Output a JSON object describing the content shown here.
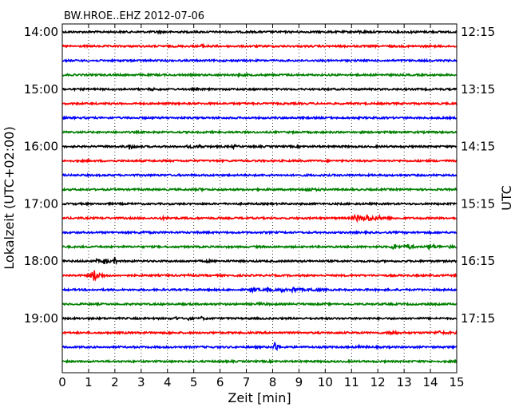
{
  "chart_data": {
    "type": "line",
    "title": "BW.HROE..EHZ 2012-07-06",
    "xlabel": "Zeit  [min]",
    "ylabel_left": "Lokalzeit (UTC+02:00)",
    "ylabel_right": "UTC",
    "xlim": [
      0,
      15
    ],
    "x_ticks": [
      "0",
      "1",
      "2",
      "3",
      "4",
      "5",
      "6",
      "7",
      "8",
      "9",
      "10",
      "11",
      "12",
      "13",
      "14",
      "15"
    ],
    "grid": "vertical dotted",
    "row_interval_minutes": 15,
    "colors": [
      "#000000",
      "#ff0000",
      "#0000ff",
      "#008000"
    ],
    "left_tick_labels": [
      "14:00",
      "15:00",
      "16:00",
      "17:00",
      "18:00",
      "19:00"
    ],
    "right_tick_labels": [
      "12:15",
      "13:15",
      "14:15",
      "15:15",
      "16:15",
      "17:15"
    ],
    "traces": [
      {
        "color": "#000000",
        "events": [
          {
            "t": 3.6,
            "a": 0.8,
            "w": 0.15
          },
          {
            "t": 11.3,
            "a": 0.8,
            "w": 0.2
          },
          {
            "t": 13.2,
            "a": 0.6,
            "w": 0.15
          }
        ]
      },
      {
        "color": "#ff0000",
        "events": [
          {
            "t": 5.3,
            "a": 1.6,
            "w": 0.2
          }
        ]
      },
      {
        "color": "#0000ff",
        "events": []
      },
      {
        "color": "#008000",
        "events": [
          {
            "t": 6.7,
            "a": 0.6,
            "w": 0.15
          }
        ]
      },
      {
        "color": "#000000",
        "events": [
          {
            "t": 3.4,
            "a": 0.6,
            "w": 0.15
          }
        ]
      },
      {
        "color": "#ff0000",
        "events": []
      },
      {
        "color": "#0000ff",
        "events": []
      },
      {
        "color": "#008000",
        "events": [
          {
            "t": 11.8,
            "a": 0.5,
            "w": 0.2
          }
        ]
      },
      {
        "color": "#000000",
        "events": [
          {
            "t": 2.55,
            "a": 3.0,
            "w": 0.15
          },
          {
            "t": 4.8,
            "a": 2.0,
            "w": 0.1
          },
          {
            "t": 5.2,
            "a": 2.0,
            "w": 0.1
          },
          {
            "t": 6.5,
            "a": 1.5,
            "w": 0.1
          }
        ]
      },
      {
        "color": "#ff0000",
        "events": []
      },
      {
        "color": "#0000ff",
        "events": []
      },
      {
        "color": "#008000",
        "events": [
          {
            "t": 9.3,
            "a": 2.0,
            "w": 0.25
          },
          {
            "t": 5.2,
            "a": 0.7,
            "w": 0.15
          }
        ]
      },
      {
        "color": "#000000",
        "events": []
      },
      {
        "color": "#ff0000",
        "events": [
          {
            "t": 11.2,
            "a": 3.5,
            "w": 0.25
          },
          {
            "t": 11.6,
            "a": 3.5,
            "w": 0.2
          },
          {
            "t": 12.1,
            "a": 1.5,
            "w": 0.2
          },
          {
            "t": 3.8,
            "a": 1.0,
            "w": 0.15
          }
        ]
      },
      {
        "color": "#0000ff",
        "events": [
          {
            "t": 3.0,
            "a": 1.0,
            "w": 0.2
          }
        ]
      },
      {
        "color": "#008000",
        "events": [
          {
            "t": 12.6,
            "a": 3.0,
            "w": 0.15
          },
          {
            "t": 13.1,
            "a": 3.5,
            "w": 0.15
          },
          {
            "t": 14.0,
            "a": 3.0,
            "w": 0.2
          },
          {
            "t": 14.8,
            "a": 1.5,
            "w": 0.15
          }
        ]
      },
      {
        "color": "#000000",
        "events": [
          {
            "t": 1.6,
            "a": 3.0,
            "w": 0.15
          },
          {
            "t": 2.0,
            "a": 6.0,
            "w": 0.05
          },
          {
            "t": 1.3,
            "a": 1.5,
            "w": 0.1
          },
          {
            "t": 5.5,
            "a": 1.0,
            "w": 0.1
          }
        ]
      },
      {
        "color": "#ff0000",
        "events": [
          {
            "t": 1.2,
            "a": 7.0,
            "w": 0.18
          },
          {
            "t": 4.8,
            "a": 0.8,
            "w": 0.1
          }
        ]
      },
      {
        "color": "#0000ff",
        "events": [
          {
            "t": 7.2,
            "a": 3.0,
            "w": 0.15
          },
          {
            "t": 7.8,
            "a": 2.5,
            "w": 0.12
          },
          {
            "t": 8.3,
            "a": 2.5,
            "w": 0.12
          },
          {
            "t": 8.8,
            "a": 3.0,
            "w": 0.15
          },
          {
            "t": 9.5,
            "a": 1.5,
            "w": 0.2
          }
        ]
      },
      {
        "color": "#008000",
        "events": [
          {
            "t": 7.5,
            "a": 1.0,
            "w": 0.15
          }
        ]
      },
      {
        "color": "#000000",
        "events": [
          {
            "t": 4.3,
            "a": 3.0,
            "w": 0.05
          },
          {
            "t": 4.8,
            "a": 2.5,
            "w": 0.05
          },
          {
            "t": 5.3,
            "a": 2.5,
            "w": 0.05
          }
        ]
      },
      {
        "color": "#ff0000",
        "events": [
          {
            "t": 12.5,
            "a": 2.0,
            "w": 0.2
          },
          {
            "t": 14.3,
            "a": 1.5,
            "w": 0.25
          },
          {
            "t": 4.0,
            "a": 1.0,
            "w": 0.1
          }
        ]
      },
      {
        "color": "#0000ff",
        "events": [
          {
            "t": 8.1,
            "a": 7.0,
            "w": 0.1
          },
          {
            "t": 11.3,
            "a": 0.8,
            "w": 0.15
          }
        ]
      },
      {
        "color": "#008000",
        "events": []
      }
    ]
  }
}
